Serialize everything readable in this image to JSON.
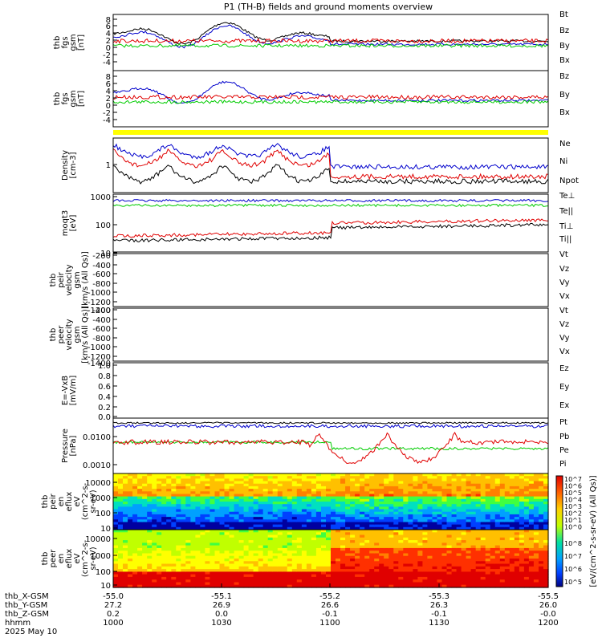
{
  "title": "P1 (TH-B) fields and ground moments overview",
  "colors": {
    "black": "#000000",
    "red": "#e00000",
    "green": "#00cc00",
    "blue": "#0000cc",
    "yellow": "#ffff00"
  },
  "chart_data": [
    {
      "type": "line",
      "id": "fgs",
      "ylabel": [
        "thb",
        "fgs",
        "gsm",
        "[nT]"
      ],
      "yticks": [
        "8",
        "6",
        "4",
        "2",
        "0",
        "-2",
        "-4"
      ],
      "ylim": [
        -5,
        9
      ],
      "series": [
        {
          "name": "Bt",
          "color": "#000000"
        },
        {
          "name": "Bz",
          "color": "#e00000"
        },
        {
          "name": "By",
          "color": "#00cc00"
        },
        {
          "name": "Bx",
          "color": "#0000cc"
        }
      ]
    },
    {
      "type": "line",
      "id": "fgs2",
      "ylabel": [
        "thb",
        "fgs",
        "gsm",
        "[nT]"
      ],
      "yticks": [
        "8",
        "6",
        "4",
        "2",
        "0",
        "-2",
        "-4"
      ],
      "ylim": [
        -5,
        9
      ],
      "series": [
        {
          "name": "Bz",
          "color": "#e00000"
        },
        {
          "name": "By",
          "color": "#00cc00"
        },
        {
          "name": "Bx",
          "color": "#0000cc"
        }
      ]
    },
    {
      "type": "line",
      "id": "density",
      "ylabel": [
        "Density",
        "[cm-3]"
      ],
      "yticks": [
        "1"
      ],
      "yscale": "log",
      "series": [
        {
          "name": "Ne",
          "color": "#e00000"
        },
        {
          "name": "Ni",
          "color": "#000000"
        },
        {
          "name": "Npot",
          "color": "#0000cc"
        }
      ]
    },
    {
      "type": "line",
      "id": "temp",
      "ylabel": [
        "moqt3",
        "[eV]"
      ],
      "yticks": [
        "1000",
        "100",
        "10"
      ],
      "yscale": "log",
      "series": [
        {
          "name": "Te⊥",
          "color": "#e00000"
        },
        {
          "name": "Te||",
          "color": "#000000"
        },
        {
          "name": "Ti⊥",
          "color": "#e00000"
        },
        {
          "name": "Ti||",
          "color": "#00cc00"
        }
      ]
    },
    {
      "type": "line",
      "id": "peir_v",
      "ylabel": [
        "thb",
        "peir",
        "velocity",
        "gsm",
        "[km/s (All Qs)]"
      ],
      "yticks": [
        "-200",
        "-400",
        "-600",
        "-800",
        "-1000",
        "-1200",
        "-1400"
      ],
      "ylim": [
        -1450,
        -100
      ],
      "series": [
        {
          "name": "Vt",
          "color": "#000000"
        },
        {
          "name": "Vz",
          "color": "#e00000"
        },
        {
          "name": "Vy",
          "color": "#00cc00"
        },
        {
          "name": "Vx",
          "color": "#0000cc"
        }
      ]
    },
    {
      "type": "line",
      "id": "peer_v",
      "ylabel": [
        "thb",
        "peer",
        "velocity",
        "gsm",
        "[km/s (All Qs)]"
      ],
      "yticks": [
        "-200",
        "-400",
        "-600",
        "-800",
        "-1000",
        "-1200",
        "-1400"
      ],
      "ylim": [
        -1450,
        -100
      ],
      "series": [
        {
          "name": "Vt",
          "color": "#000000"
        },
        {
          "name": "Vz",
          "color": "#e00000"
        },
        {
          "name": "Vy",
          "color": "#00cc00"
        },
        {
          "name": "Vx",
          "color": "#0000cc"
        }
      ]
    },
    {
      "type": "line",
      "id": "efield",
      "ylabel": [
        "E=-VxB",
        "[mV/m]"
      ],
      "yticks": [
        "1.0",
        "0.8",
        "0.6",
        "0.4",
        "0.2",
        "0.0"
      ],
      "ylim": [
        -0.05,
        1.05
      ],
      "series": [
        {
          "name": "Ez",
          "color": "#e00000"
        },
        {
          "name": "Ey",
          "color": "#00cc00"
        },
        {
          "name": "Ex",
          "color": "#0000cc"
        }
      ]
    },
    {
      "type": "line",
      "id": "pressure",
      "ylabel": [
        "Pressure",
        "[nPa]"
      ],
      "yticks": [
        "0.0100",
        "0.0010"
      ],
      "yscale": "log",
      "series": [
        {
          "name": "Pt",
          "color": "#000000"
        },
        {
          "name": "Pb",
          "color": "#e00000"
        },
        {
          "name": "Pe",
          "color": "#00cc00"
        },
        {
          "name": "Pi",
          "color": "#0000cc"
        }
      ]
    },
    {
      "type": "heatmap",
      "id": "peir_en",
      "ylabel": [
        "thb",
        "peir",
        "en",
        "eflux",
        "eV",
        "(cm^2-s-",
        "sr-eV)"
      ],
      "yticks": [
        "10000",
        "1000",
        "100",
        "10"
      ],
      "yscale": "log"
    },
    {
      "type": "heatmap",
      "id": "peer_en",
      "ylabel": [
        "thb",
        "peer",
        "en",
        "eflux",
        "eV",
        "(cm^2-s-",
        "sr-eV)"
      ],
      "yticks": [
        "10000",
        "1000",
        "100",
        "10"
      ],
      "yscale": "log"
    }
  ],
  "colorbar": {
    "ticks_top": [
      "10^7",
      "10^6",
      "10^5",
      "10^4",
      "10^3",
      "10^2",
      "10^1",
      "10^0"
    ],
    "ticks_bottom": [
      "10^8",
      "10^7",
      "10^6",
      "10^5"
    ],
    "label": "[eV/(cm^2-s-sr-eV) (All Qs)]"
  },
  "xaxis": {
    "rows": [
      {
        "label": "thb_X-GSM",
        "values": [
          "-55.0",
          "-55.1",
          "-55.2",
          "-55.3",
          "-55.5"
        ]
      },
      {
        "label": "thb_Y-GSM",
        "values": [
          "27.2",
          "26.9",
          "26.6",
          "26.3",
          "26.0"
        ]
      },
      {
        "label": "thb_Z-GSM",
        "values": [
          "0.2",
          "0.0",
          "-0.1",
          "-0.1",
          "-0.0"
        ]
      },
      {
        "label": "hhmm",
        "values": [
          "1000",
          "1030",
          "1100",
          "1130",
          "1200"
        ]
      }
    ],
    "date": "2025 May 10"
  }
}
